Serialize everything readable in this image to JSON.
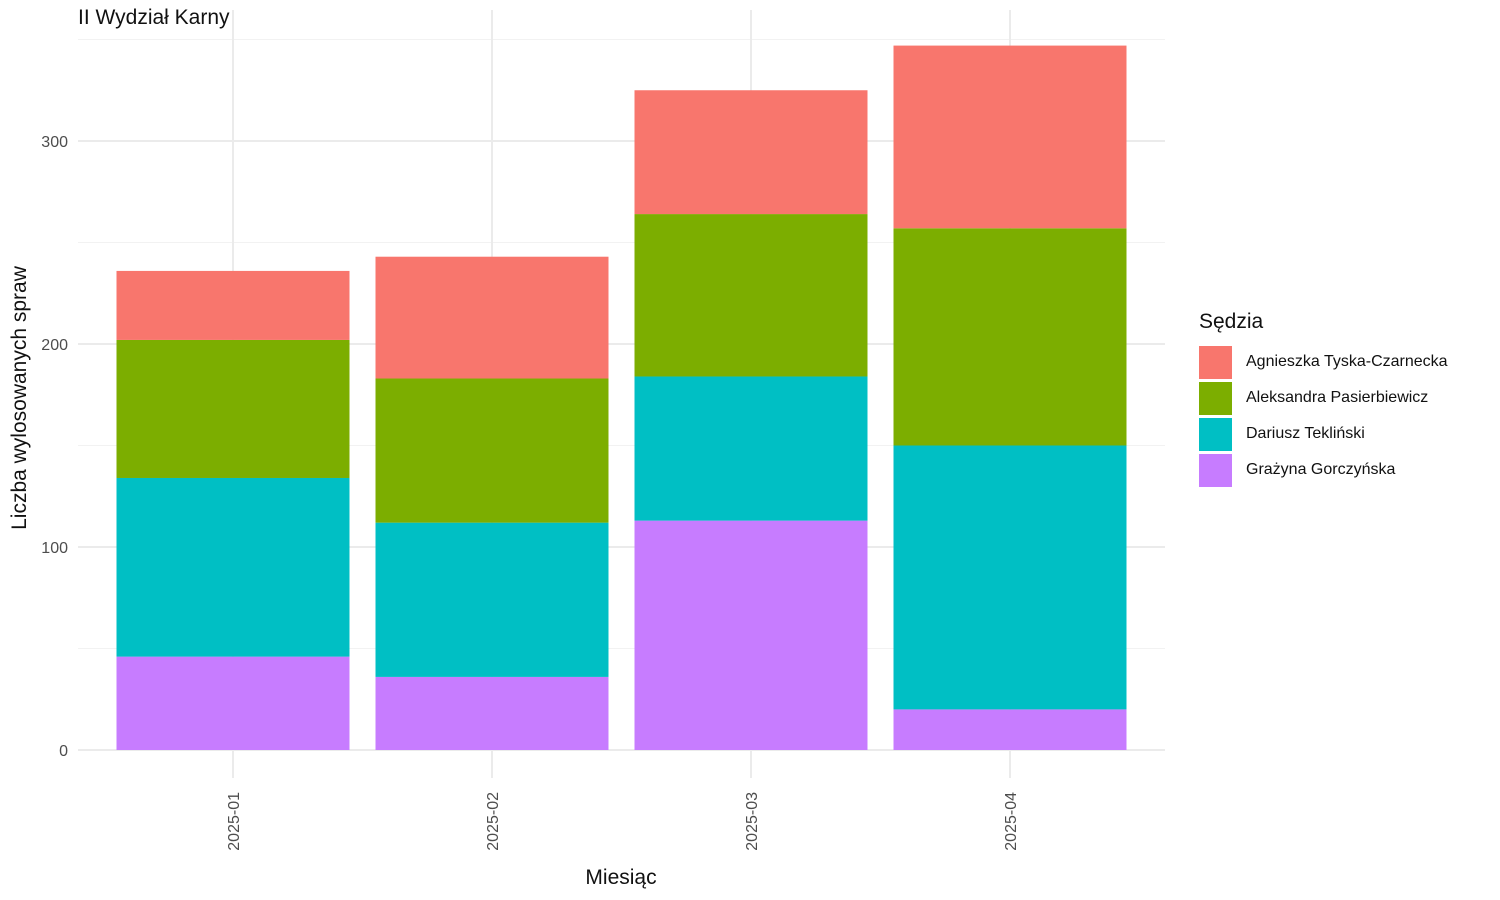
{
  "chart_data": {
    "type": "bar",
    "stacked": true,
    "title": "II Wydział Karny",
    "xlabel": "Miesiąc",
    "ylabel": "Liczba wylosowanych spraw",
    "categories": [
      "2025-01",
      "2025-02",
      "2025-03",
      "2025-04"
    ],
    "ylim": [
      0,
      350
    ],
    "yticks": [
      0,
      100,
      200,
      300
    ],
    "grid": true,
    "legend": {
      "title": "Sędzia",
      "position": "right"
    },
    "series": [
      {
        "name": "Grażyna Gorczyńska",
        "color": "#C77CFF",
        "values": [
          46,
          36,
          113,
          20
        ]
      },
      {
        "name": "Dariusz Tekliński",
        "color": "#00BFC4",
        "values": [
          88,
          76,
          71,
          130
        ]
      },
      {
        "name": "Aleksandra Pasierbiewicz",
        "color": "#7CAE00",
        "values": [
          68,
          71,
          80,
          107
        ]
      },
      {
        "name": "Agnieszka Tyska-Czarnecka",
        "color": "#F8766D",
        "values": [
          34,
          60,
          61,
          90
        ]
      }
    ],
    "legend_order": [
      "Agnieszka Tyska-Czarnecka",
      "Aleksandra Pasierbiewicz",
      "Dariusz Tekliński",
      "Grażyna Gorczyńska"
    ]
  }
}
